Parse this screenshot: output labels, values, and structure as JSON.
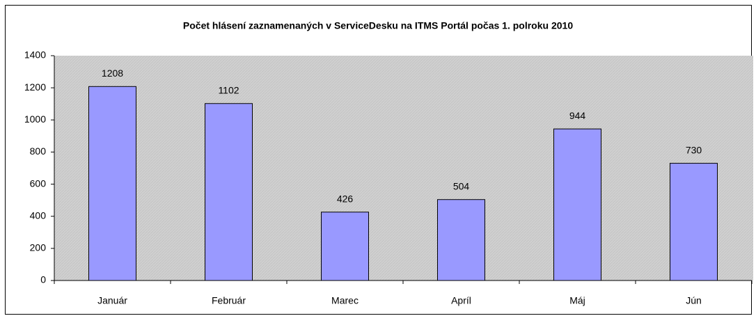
{
  "chart_data": {
    "type": "bar",
    "title": "Počet hlásení zaznamenaných v ServiceDesku na ITMS Portál počas 1. polroku 2010",
    "categories": [
      "Január",
      "Február",
      "Marec",
      "Apríl",
      "Máj",
      "Jún"
    ],
    "values": [
      1208,
      1102,
      426,
      504,
      944,
      730
    ],
    "color": "#9999ff",
    "ylim": [
      0,
      1400
    ],
    "yticks": [
      0,
      200,
      400,
      600,
      800,
      1000,
      1200,
      1400
    ],
    "grid": false
  }
}
